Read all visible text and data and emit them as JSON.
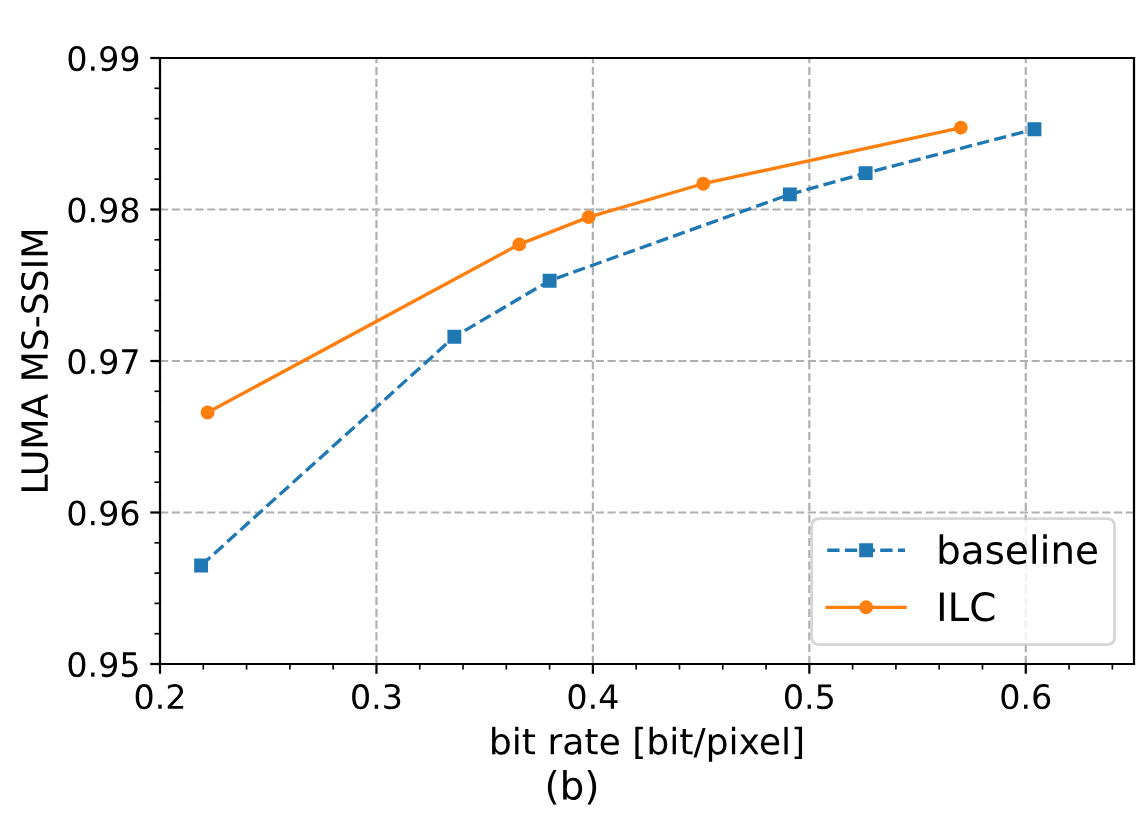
{
  "chart_data": {
    "type": "line",
    "xlabel": "bit rate [bit/pixel]",
    "ylabel": "LUMA MS-SSIM",
    "annotations": [
      "(b)"
    ],
    "series": [
      {
        "name": "baseline",
        "color": "#1f77b4",
        "marker": "square",
        "line_style": "dashed",
        "x": [
          0.219,
          0.336,
          0.38,
          0.491,
          0.526,
          0.604
        ],
        "values": [
          0.9565,
          0.9716,
          0.9753,
          0.981,
          0.9824,
          0.9853
        ]
      },
      {
        "name": "ILC",
        "color": "#ff7f0e",
        "marker": "circle",
        "line_style": "solid",
        "x": [
          0.222,
          0.366,
          0.398,
          0.451,
          0.57
        ],
        "values": [
          0.9666,
          0.9777,
          0.9795,
          0.9817,
          0.9854
        ]
      }
    ],
    "xlim": [
      0.2,
      0.65
    ],
    "xticks": [
      {
        "value": 0.2,
        "label": "0.2"
      },
      {
        "value": 0.3,
        "label": "0.3"
      },
      {
        "value": 0.4,
        "label": "0.4"
      },
      {
        "value": 0.5,
        "label": "0.5"
      },
      {
        "value": 0.6,
        "label": "0.6"
      }
    ],
    "ylim": [
      0.95,
      0.99
    ],
    "yticks": [
      {
        "value": 0.95,
        "label": "0.95"
      },
      {
        "value": 0.96,
        "label": "0.96"
      },
      {
        "value": 0.97,
        "label": "0.97"
      },
      {
        "value": 0.98,
        "label": "0.98"
      },
      {
        "value": 0.99,
        "label": "0.99"
      }
    ],
    "grid": true,
    "legend": "bottom right"
  }
}
